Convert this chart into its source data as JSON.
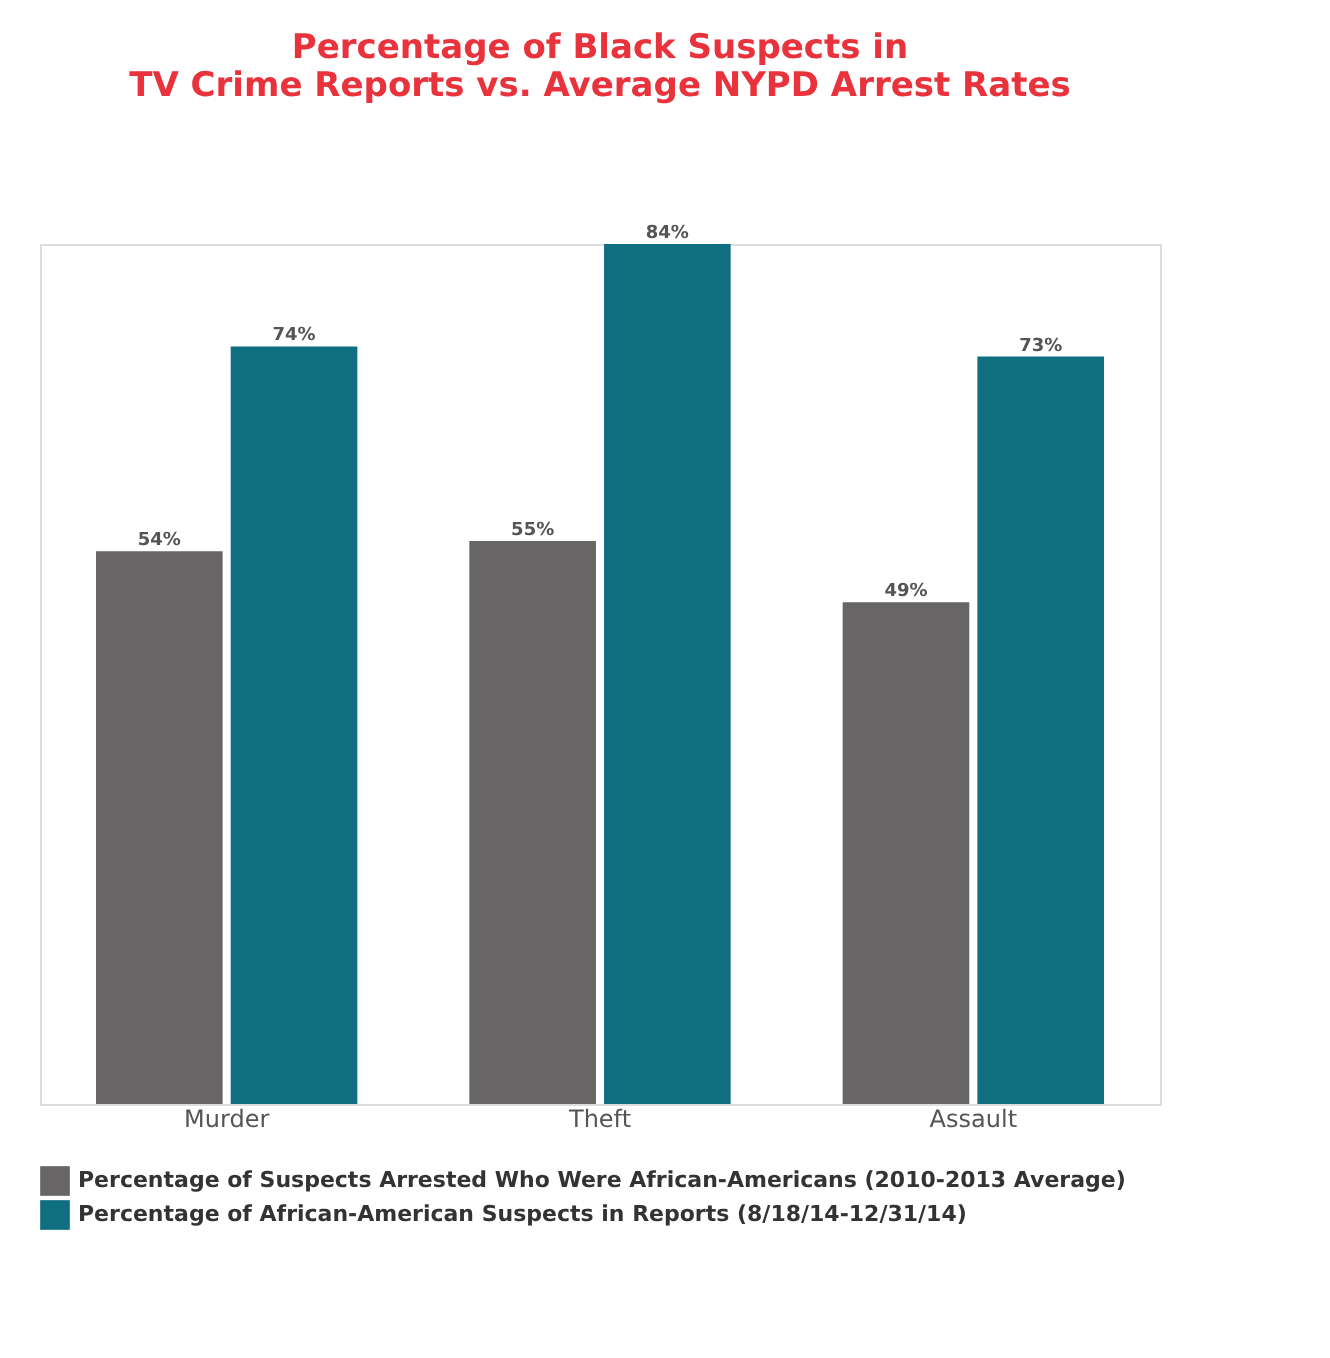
{
  "chart_data": {
    "type": "bar",
    "title": [
      "Percentage of Black Suspects in",
      "TV Crime Reports vs. Average NYPD Arrest Rates"
    ],
    "categories": [
      "Murder",
      "Theft",
      "Assault"
    ],
    "series": [
      {
        "name": "Percentage of Suspects Arrested Who Were African-Americans (2010-2013 Average)",
        "color": "#676565",
        "values": [
          54,
          55,
          49
        ],
        "value_labels": [
          "54%",
          "55%",
          "49%"
        ]
      },
      {
        "name": "Percentage of African-American Suspects in Reports (8/18/14-12/31/14)",
        "color": "#0f6f81",
        "values": [
          74,
          84,
          73
        ],
        "value_labels": [
          "74%",
          "84%",
          "73%"
        ]
      }
    ],
    "legend": "bottom",
    "grid": false,
    "tick_labels": "x"
  }
}
